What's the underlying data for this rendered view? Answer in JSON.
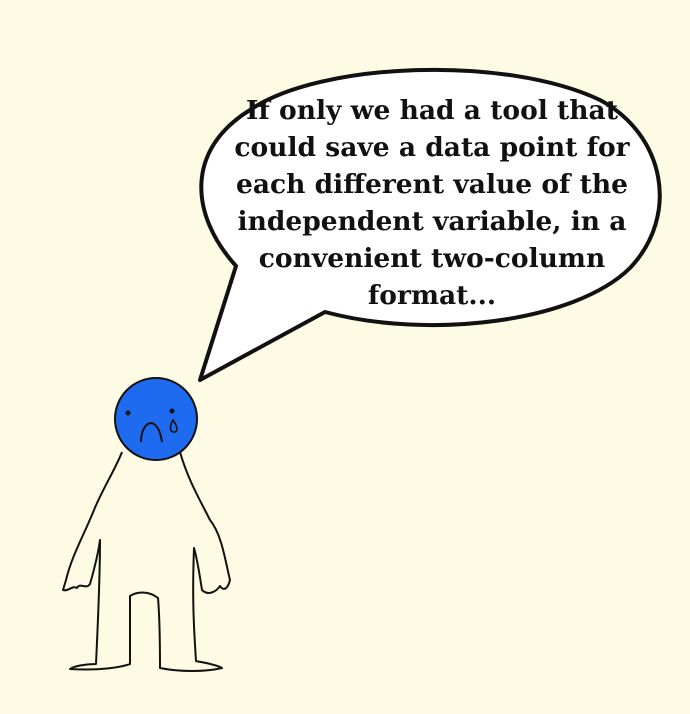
{
  "speech_bubble": {
    "lines": [
      "If only we had a tool that",
      "could save a data point for",
      "each different value of the",
      "independent variable, in a",
      "convenient two-column",
      "format..."
    ]
  },
  "character": {
    "head_color": "#1f6bf0",
    "expression": "sad-tear"
  },
  "colors": {
    "background": "#fdfbe4",
    "bubble_fill": "#ffffff",
    "outline": "#111111"
  }
}
